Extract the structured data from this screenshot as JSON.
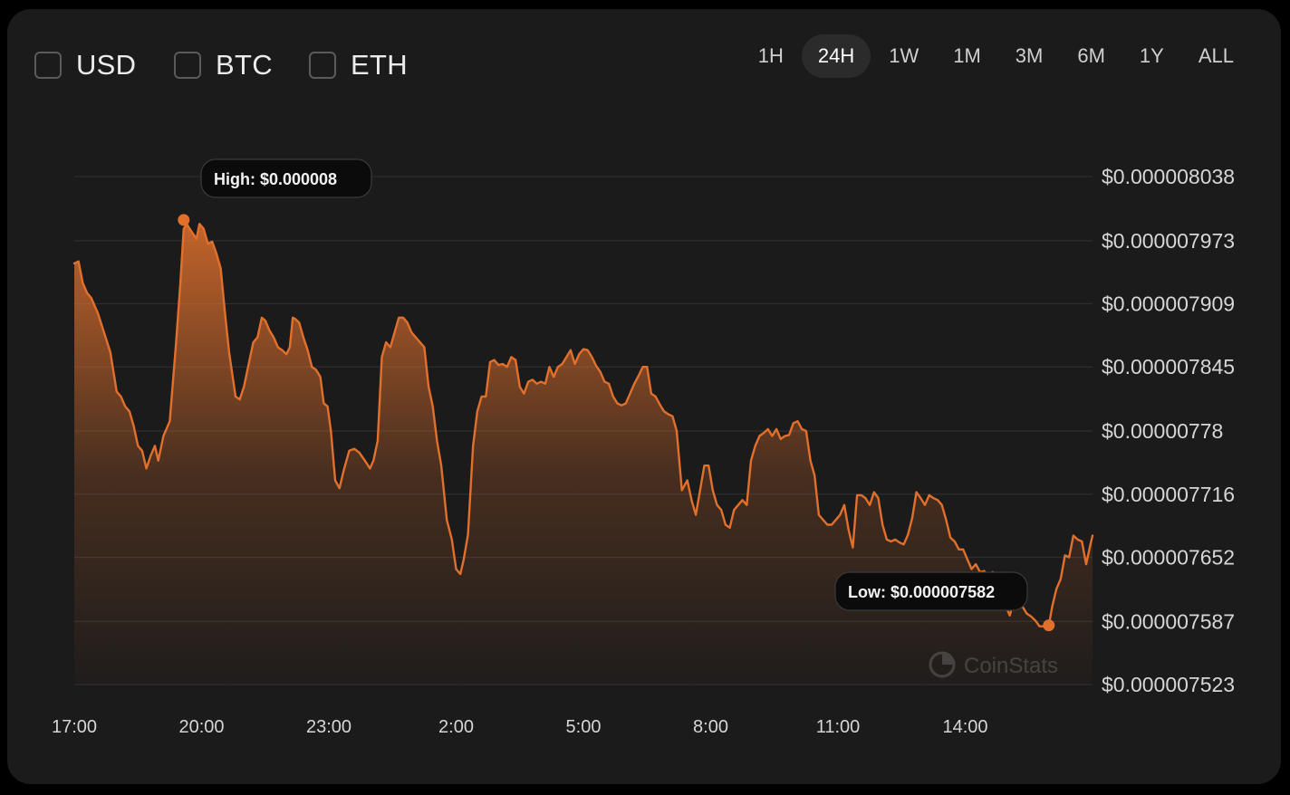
{
  "currencies": [
    {
      "label": "USD",
      "checked": true
    },
    {
      "label": "BTC",
      "checked": false
    },
    {
      "label": "ETH",
      "checked": false
    }
  ],
  "time_ranges": [
    "1H",
    "24H",
    "1W",
    "1M",
    "3M",
    "6M",
    "1Y",
    "ALL"
  ],
  "active_range": "24H",
  "colors": {
    "accent": "#e1702d",
    "background": "#1b1b1b",
    "grid": "#2e2e2e",
    "axis_text": "#d6d6d6"
  },
  "watermark": "CoinStats",
  "chart_data": {
    "type": "area",
    "x_unit": "hour",
    "x_tick_labels": [
      "17:00",
      "20:00",
      "23:00",
      "2:00",
      "5:00",
      "8:00",
      "11:00",
      "14:00"
    ],
    "y_tick_labels": [
      "$0.000008038",
      "$0.000007973",
      "$0.000007909",
      "$0.000007845",
      "$0.00000778",
      "$0.000007716",
      "$0.000007652",
      "$0.000007587",
      "$0.000007523"
    ],
    "y_ticks": [
      8.038e-06,
      7.973e-06,
      7.909e-06,
      7.845e-06,
      7.78e-06,
      7.716e-06,
      7.652e-06,
      7.587e-06,
      7.523e-06
    ],
    "ylim": [
      7.523e-06,
      8.038e-06
    ],
    "xlim": [
      17,
      41
    ],
    "grid": true,
    "y_axis_position": "right",
    "high_label": "High: $0.000008",
    "low_label": "Low: $0.000007582",
    "high_point": {
      "x": 19.58,
      "y": 7.994e-06
    },
    "low_point": {
      "x": 39.97,
      "y": 7.583e-06
    },
    "series": [
      {
        "points": [
          [
            17.0,
            7.95e-06
          ],
          [
            17.1,
            7.952e-06
          ],
          [
            17.2,
            7.93e-06
          ],
          [
            17.3,
            7.92e-06
          ],
          [
            17.4,
            7.915e-06
          ],
          [
            17.55,
            7.9e-06
          ],
          [
            17.7,
            7.88e-06
          ],
          [
            17.85,
            7.86e-06
          ],
          [
            18.0,
            7.82e-06
          ],
          [
            18.1,
            7.815e-06
          ],
          [
            18.2,
            7.805e-06
          ],
          [
            18.3,
            7.8e-06
          ],
          [
            18.4,
            7.785e-06
          ],
          [
            18.5,
            7.765e-06
          ],
          [
            18.6,
            7.76e-06
          ],
          [
            18.7,
            7.742e-06
          ],
          [
            18.8,
            7.755e-06
          ],
          [
            18.9,
            7.765e-06
          ],
          [
            18.98,
            7.75e-06
          ],
          [
            19.1,
            7.775e-06
          ],
          [
            19.25,
            7.79e-06
          ],
          [
            19.4,
            7.87e-06
          ],
          [
            19.5,
            7.93e-06
          ],
          [
            19.58,
            7.985e-06
          ],
          [
            19.65,
            7.99e-06
          ],
          [
            19.72,
            7.985e-06
          ],
          [
            19.8,
            7.98e-06
          ],
          [
            19.88,
            7.975e-06
          ],
          [
            19.95,
            7.99e-06
          ],
          [
            20.05,
            7.985e-06
          ],
          [
            20.15,
            7.97e-06
          ],
          [
            20.25,
            7.972e-06
          ],
          [
            20.35,
            7.96e-06
          ],
          [
            20.45,
            7.945e-06
          ],
          [
            20.55,
            7.9e-06
          ],
          [
            20.65,
            7.86e-06
          ],
          [
            20.8,
            7.815e-06
          ],
          [
            20.9,
            7.812e-06
          ],
          [
            21.0,
            7.825e-06
          ],
          [
            21.12,
            7.85e-06
          ],
          [
            21.22,
            7.87e-06
          ],
          [
            21.32,
            7.875e-06
          ],
          [
            21.42,
            7.895e-06
          ],
          [
            21.5,
            7.892e-06
          ],
          [
            21.6,
            7.882e-06
          ],
          [
            21.7,
            7.875e-06
          ],
          [
            21.8,
            7.865e-06
          ],
          [
            21.9,
            7.862e-06
          ],
          [
            22.0,
            7.858e-06
          ],
          [
            22.08,
            7.865e-06
          ],
          [
            22.15,
            7.895e-06
          ],
          [
            22.2,
            7.894e-06
          ],
          [
            22.3,
            7.89e-06
          ],
          [
            22.4,
            7.875e-06
          ],
          [
            22.5,
            7.862e-06
          ],
          [
            22.6,
            7.845e-06
          ],
          [
            22.7,
            7.842e-06
          ],
          [
            22.8,
            7.835e-06
          ],
          [
            22.88,
            7.808e-06
          ],
          [
            22.97,
            7.805e-06
          ],
          [
            23.05,
            7.78e-06
          ],
          [
            23.15,
            7.73e-06
          ],
          [
            23.25,
            7.722e-06
          ],
          [
            23.35,
            7.74e-06
          ],
          [
            23.48,
            7.76e-06
          ],
          [
            23.6,
            7.762e-06
          ],
          [
            23.72,
            7.758e-06
          ],
          [
            23.85,
            7.75e-06
          ],
          [
            23.97,
            7.742e-06
          ],
          [
            24.05,
            7.75e-06
          ],
          [
            24.15,
            7.77e-06
          ],
          [
            24.25,
            7.855e-06
          ],
          [
            24.35,
            7.87e-06
          ],
          [
            24.45,
            7.865e-06
          ],
          [
            24.55,
            7.88e-06
          ],
          [
            24.65,
            7.895e-06
          ],
          [
            24.75,
            7.895e-06
          ],
          [
            24.85,
            7.89e-06
          ],
          [
            24.95,
            7.88e-06
          ],
          [
            25.05,
            7.875e-06
          ],
          [
            25.15,
            7.87e-06
          ],
          [
            25.25,
            7.865e-06
          ],
          [
            25.35,
            7.825e-06
          ],
          [
            25.45,
            7.805e-06
          ],
          [
            25.55,
            7.77e-06
          ],
          [
            25.65,
            7.745e-06
          ],
          [
            25.78,
            7.69e-06
          ],
          [
            25.9,
            7.67e-06
          ],
          [
            26.0,
            7.64e-06
          ],
          [
            26.1,
            7.635e-06
          ],
          [
            26.18,
            7.65e-06
          ],
          [
            26.28,
            7.675e-06
          ],
          [
            26.4,
            7.765e-06
          ],
          [
            26.5,
            7.8e-06
          ],
          [
            26.6,
            7.815e-06
          ],
          [
            26.7,
            7.815e-06
          ],
          [
            26.8,
            7.85e-06
          ],
          [
            26.9,
            7.852e-06
          ],
          [
            27.0,
            7.847e-06
          ],
          [
            27.1,
            7.848e-06
          ],
          [
            27.2,
            7.845e-06
          ],
          [
            27.3,
            7.855e-06
          ],
          [
            27.4,
            7.852e-06
          ],
          [
            27.5,
            7.825e-06
          ],
          [
            27.6,
            7.818e-06
          ],
          [
            27.7,
            7.83e-06
          ],
          [
            27.8,
            7.832e-06
          ],
          [
            27.9,
            7.828e-06
          ],
          [
            28.0,
            7.83e-06
          ],
          [
            28.1,
            7.828e-06
          ],
          [
            28.2,
            7.845e-06
          ],
          [
            28.3,
            7.835e-06
          ],
          [
            28.4,
            7.845e-06
          ],
          [
            28.5,
            7.848e-06
          ],
          [
            28.6,
            7.855e-06
          ],
          [
            28.7,
            7.862e-06
          ],
          [
            28.8,
            7.848e-06
          ],
          [
            28.9,
            7.858e-06
          ],
          [
            29.0,
            7.863e-06
          ],
          [
            29.1,
            7.862e-06
          ],
          [
            29.2,
            7.855e-06
          ],
          [
            29.3,
            7.846e-06
          ],
          [
            29.4,
            7.84e-06
          ],
          [
            29.5,
            7.83e-06
          ],
          [
            29.6,
            7.828e-06
          ],
          [
            29.7,
            7.815e-06
          ],
          [
            29.8,
            7.808e-06
          ],
          [
            29.9,
            7.806e-06
          ],
          [
            30.0,
            7.808e-06
          ],
          [
            30.1,
            7.818e-06
          ],
          [
            30.2,
            7.828e-06
          ],
          [
            30.3,
            7.836e-06
          ],
          [
            30.4,
            7.845e-06
          ],
          [
            30.5,
            7.845e-06
          ],
          [
            30.6,
            7.818e-06
          ],
          [
            30.7,
            7.815e-06
          ],
          [
            30.8,
            7.807e-06
          ],
          [
            30.9,
            7.8e-06
          ],
          [
            31.0,
            7.797e-06
          ],
          [
            31.1,
            7.795e-06
          ],
          [
            31.2,
            7.78e-06
          ],
          [
            31.32,
            7.72e-06
          ],
          [
            31.45,
            7.73e-06
          ],
          [
            31.55,
            7.71e-06
          ],
          [
            31.65,
            7.695e-06
          ],
          [
            31.75,
            7.72e-06
          ],
          [
            31.85,
            7.745e-06
          ],
          [
            31.95,
            7.745e-06
          ],
          [
            32.05,
            7.72e-06
          ],
          [
            32.15,
            7.705e-06
          ],
          [
            32.25,
            7.7e-06
          ],
          [
            32.35,
            7.685e-06
          ],
          [
            32.45,
            7.682e-06
          ],
          [
            32.55,
            7.7e-06
          ],
          [
            32.65,
            7.705e-06
          ],
          [
            32.75,
            7.71e-06
          ],
          [
            32.85,
            7.705e-06
          ],
          [
            32.95,
            7.75e-06
          ],
          [
            33.05,
            7.765e-06
          ],
          [
            33.15,
            7.775e-06
          ],
          [
            33.25,
            7.778e-06
          ],
          [
            33.35,
            7.782e-06
          ],
          [
            33.45,
            7.775e-06
          ],
          [
            33.55,
            7.782e-06
          ],
          [
            33.65,
            7.772e-06
          ],
          [
            33.75,
            7.775e-06
          ],
          [
            33.85,
            7.776e-06
          ],
          [
            33.95,
            7.788e-06
          ],
          [
            34.05,
            7.79e-06
          ],
          [
            34.15,
            7.782e-06
          ],
          [
            34.25,
            7.78e-06
          ],
          [
            34.35,
            7.75e-06
          ],
          [
            34.45,
            7.735e-06
          ],
          [
            34.55,
            7.695e-06
          ],
          [
            34.65,
            7.69e-06
          ],
          [
            34.75,
            7.685e-06
          ],
          [
            34.85,
            7.685e-06
          ],
          [
            34.95,
            7.69e-06
          ],
          [
            35.05,
            7.695e-06
          ],
          [
            35.15,
            7.705e-06
          ],
          [
            35.25,
            7.68e-06
          ],
          [
            35.35,
            7.662e-06
          ],
          [
            35.45,
            7.715e-06
          ],
          [
            35.55,
            7.715e-06
          ],
          [
            35.65,
            7.712e-06
          ],
          [
            35.75,
            7.705e-06
          ],
          [
            35.85,
            7.718e-06
          ],
          [
            35.95,
            7.712e-06
          ],
          [
            36.05,
            7.685e-06
          ],
          [
            36.15,
            7.67e-06
          ],
          [
            36.25,
            7.668e-06
          ],
          [
            36.35,
            7.67e-06
          ],
          [
            36.45,
            7.667e-06
          ],
          [
            36.55,
            7.665e-06
          ],
          [
            36.65,
            7.675e-06
          ],
          [
            36.75,
            7.692e-06
          ],
          [
            36.85,
            7.718e-06
          ],
          [
            36.95,
            7.712e-06
          ],
          [
            37.05,
            7.705e-06
          ],
          [
            37.15,
            7.715e-06
          ],
          [
            37.25,
            7.712e-06
          ],
          [
            37.35,
            7.71e-06
          ],
          [
            37.45,
            7.705e-06
          ],
          [
            37.55,
            7.69e-06
          ],
          [
            37.65,
            7.672e-06
          ],
          [
            37.75,
            7.668e-06
          ],
          [
            37.85,
            7.66e-06
          ],
          [
            37.95,
            7.66e-06
          ],
          [
            38.05,
            7.65e-06
          ],
          [
            38.15,
            7.64e-06
          ],
          [
            38.25,
            7.645e-06
          ],
          [
            38.35,
            7.637e-06
          ],
          [
            38.45,
            7.638e-06
          ],
          [
            38.55,
            7.626e-06
          ],
          [
            38.65,
            7.637e-06
          ],
          [
            38.75,
            7.628e-06
          ],
          [
            38.85,
            7.612e-06
          ],
          [
            38.95,
            7.603e-06
          ],
          [
            39.05,
            7.593e-06
          ],
          [
            39.15,
            7.61e-06
          ],
          [
            39.25,
            7.612e-06
          ],
          [
            39.35,
            7.602e-06
          ],
          [
            39.45,
            7.595e-06
          ],
          [
            39.55,
            7.592e-06
          ],
          [
            39.65,
            7.588e-06
          ],
          [
            39.75,
            7.582e-06
          ],
          [
            39.87,
            7.582e-06
          ],
          [
            39.97,
            7.583e-06
          ],
          [
            40.05,
            7.602e-06
          ],
          [
            40.15,
            7.62e-06
          ],
          [
            40.25,
            7.63e-06
          ],
          [
            40.35,
            7.654e-06
          ],
          [
            40.45,
            7.652e-06
          ],
          [
            40.55,
            7.674e-06
          ],
          [
            40.65,
            7.67e-06
          ],
          [
            40.75,
            7.668e-06
          ],
          [
            40.85,
            7.645e-06
          ],
          [
            40.95,
            7.665e-06
          ],
          [
            41.0,
            7.674e-06
          ]
        ]
      }
    ]
  }
}
